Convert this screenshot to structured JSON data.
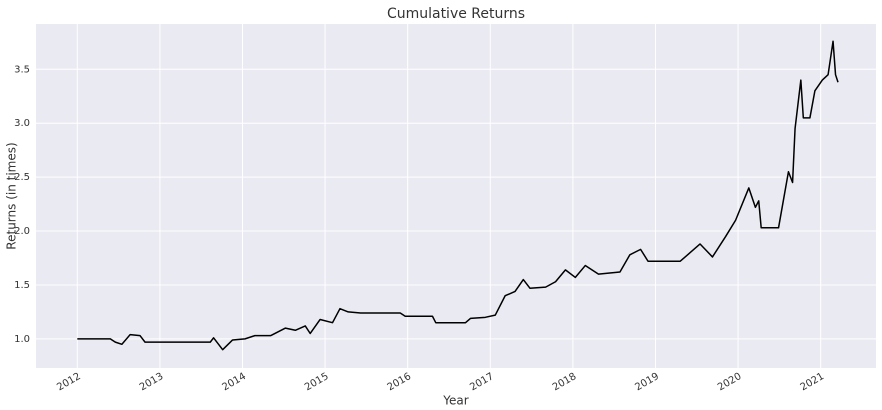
{
  "chart_data": {
    "type": "line",
    "title": "Cumulative Returns",
    "x_label": "Year",
    "y_label": "Returns (in times)",
    "x": [
      2012.0,
      2012.4,
      2012.46,
      2012.54,
      2012.64,
      2012.76,
      2012.82,
      2013.61,
      2013.65,
      2013.76,
      2013.88,
      2014.03,
      2014.15,
      2014.34,
      2014.52,
      2014.64,
      2014.76,
      2014.82,
      2014.94,
      2015.09,
      2015.18,
      2015.28,
      2015.43,
      2015.91,
      2015.97,
      2016.3,
      2016.34,
      2016.7,
      2016.76,
      2016.94,
      2017.06,
      2017.18,
      2017.3,
      2017.4,
      2017.48,
      2017.67,
      2017.79,
      2017.91,
      2018.03,
      2018.15,
      2018.31,
      2018.57,
      2018.69,
      2018.82,
      2018.91,
      2019.3,
      2019.42,
      2019.54,
      2019.69,
      2019.85,
      2019.97,
      2020.13,
      2020.21,
      2020.25,
      2020.28,
      2020.49,
      2020.61,
      2020.66,
      2020.69,
      2020.76,
      2020.79,
      2020.87,
      2020.93,
      2021.02,
      2021.09,
      2021.15,
      2021.18,
      2021.21
    ],
    "values": [
      1.0,
      1.0,
      0.97,
      0.95,
      1.04,
      1.03,
      0.97,
      0.97,
      1.01,
      0.9,
      0.99,
      1.0,
      1.03,
      1.03,
      1.1,
      1.08,
      1.12,
      1.05,
      1.18,
      1.15,
      1.28,
      1.25,
      1.24,
      1.24,
      1.21,
      1.21,
      1.15,
      1.15,
      1.19,
      1.2,
      1.22,
      1.4,
      1.44,
      1.55,
      1.47,
      1.48,
      1.53,
      1.64,
      1.57,
      1.68,
      1.6,
      1.62,
      1.78,
      1.83,
      1.72,
      1.72,
      1.8,
      1.88,
      1.76,
      1.95,
      2.1,
      2.4,
      2.22,
      2.28,
      2.03,
      2.03,
      2.55,
      2.45,
      2.95,
      3.4,
      3.05,
      3.05,
      3.3,
      3.4,
      3.45,
      3.76,
      3.45,
      3.38
    ],
    "color": "#000000",
    "xlim": [
      2011.5,
      2021.67
    ],
    "xticks": [
      2012,
      2013,
      2014,
      2015,
      2016,
      2017,
      2018,
      2019,
      2020,
      2021
    ],
    "ylim": [
      0.73,
      3.92
    ],
    "yticks": [
      {
        "value": 1,
        "label": "1.0"
      },
      {
        "value": 1.5,
        "label": "1.5"
      },
      {
        "value": 2,
        "label": "2.0"
      },
      {
        "value": 2.5,
        "label": "2.5"
      },
      {
        "value": 3,
        "label": "3.0"
      },
      {
        "value": 3.5,
        "label": "3.5"
      }
    ],
    "grid": true
  }
}
